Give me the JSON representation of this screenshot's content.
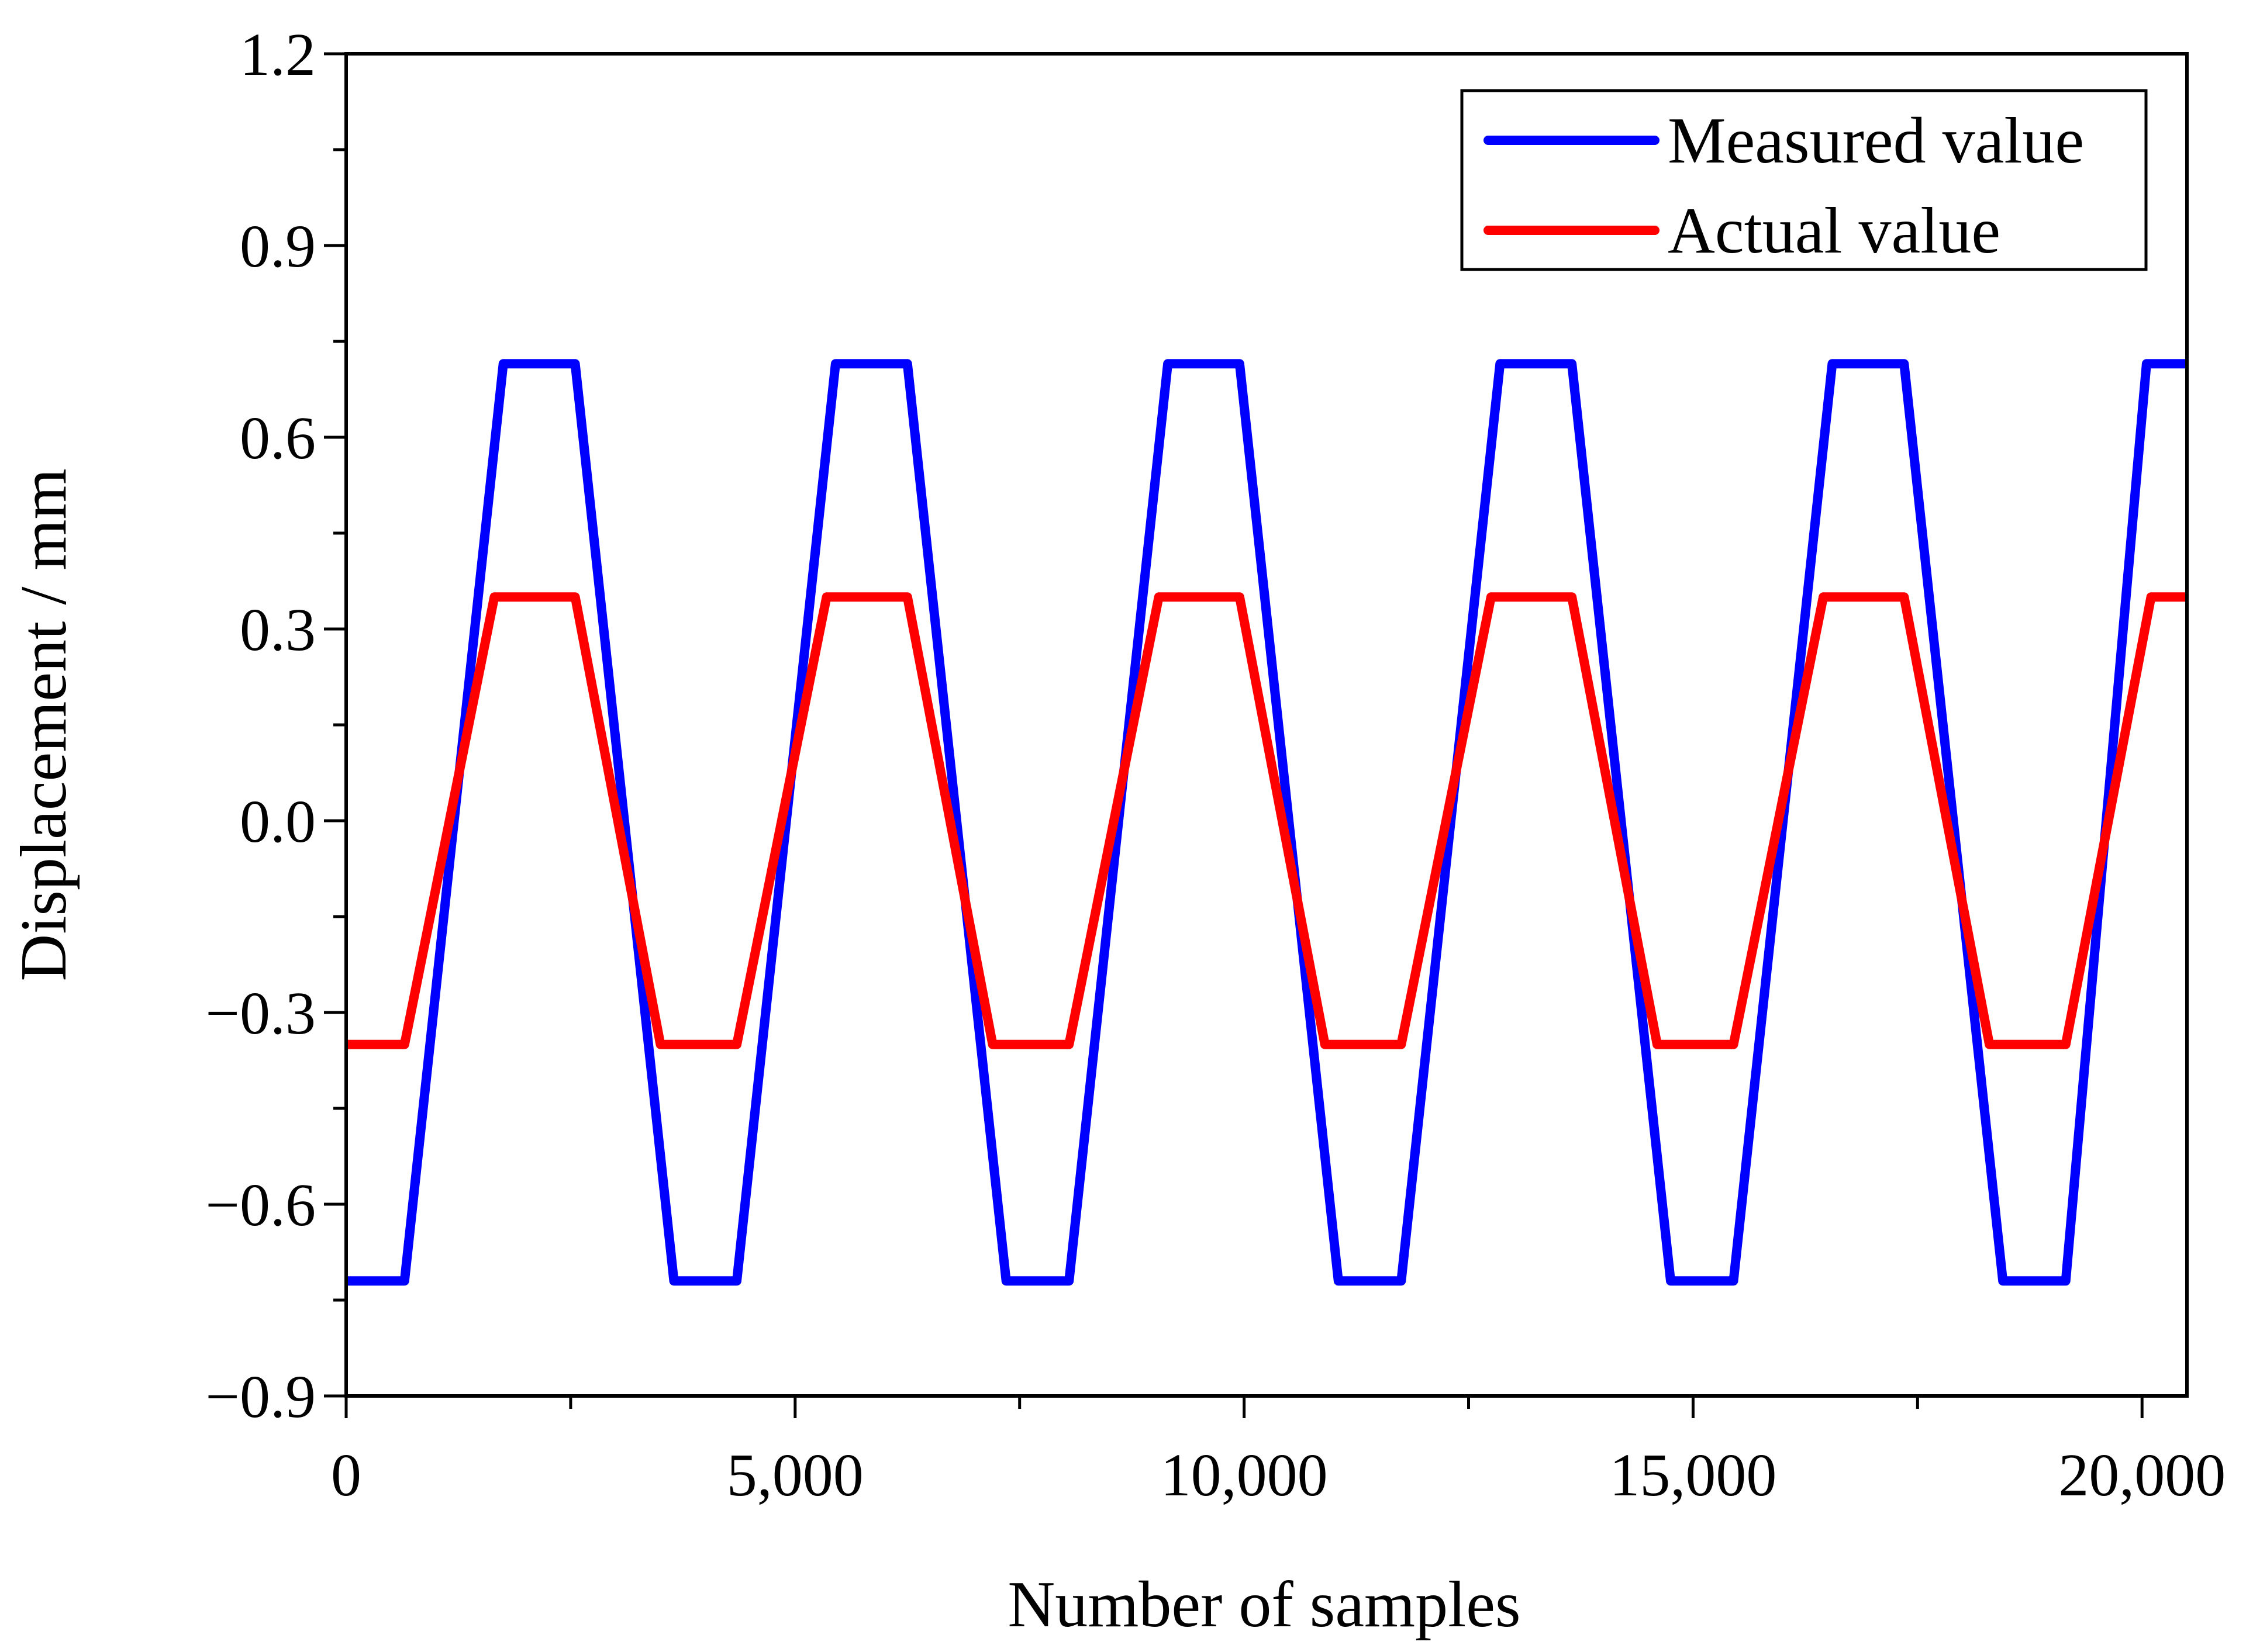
{
  "chart_data": {
    "type": "line",
    "title": "",
    "xlabel": "Number of samples",
    "ylabel": "Displacement / mm",
    "xlim": [
      0,
      20500
    ],
    "ylim": [
      -0.9,
      1.2
    ],
    "x_ticks": [
      0,
      5000,
      10000,
      15000,
      20000
    ],
    "x_tick_labels": [
      "0",
      "5,000",
      "10,000",
      "15,000",
      "20,000"
    ],
    "y_ticks": [
      -0.9,
      -0.6,
      -0.3,
      0.0,
      0.3,
      0.6,
      0.9,
      1.2
    ],
    "y_tick_labels": [
      "−0.9",
      "−0.6",
      "−0.3",
      "0.0",
      "0.3",
      "0.6",
      "0.9",
      "1.2"
    ],
    "legend_position": "top-right",
    "grid": false,
    "series": [
      {
        "name": "Measured value",
        "color": "#0000ff",
        "x": [
          0,
          650,
          1750,
          2550,
          3650,
          4350,
          5450,
          6250,
          7350,
          8050,
          9150,
          9950,
          11050,
          11750,
          12850,
          13650,
          14750,
          15450,
          16550,
          17350,
          18450,
          19150,
          20050,
          20500
        ],
        "y": [
          -0.72,
          -0.72,
          0.715,
          0.715,
          -0.72,
          -0.72,
          0.715,
          0.715,
          -0.72,
          -0.72,
          0.715,
          0.715,
          -0.72,
          -0.72,
          0.715,
          0.715,
          -0.72,
          -0.72,
          0.715,
          0.715,
          -0.72,
          -0.72,
          0.715,
          0.715
        ]
      },
      {
        "name": "Actual value",
        "color": "#ff0000",
        "x": [
          0,
          650,
          1650,
          2550,
          3500,
          4350,
          5350,
          6250,
          7200,
          8050,
          9050,
          9950,
          10900,
          11750,
          12750,
          13650,
          14600,
          15450,
          16450,
          17350,
          18300,
          19150,
          20100,
          20500
        ],
        "y": [
          -0.35,
          -0.35,
          0.35,
          0.35,
          -0.35,
          -0.35,
          0.35,
          0.35,
          -0.35,
          -0.35,
          0.35,
          0.35,
          -0.35,
          -0.35,
          0.35,
          0.35,
          -0.35,
          -0.35,
          0.35,
          0.35,
          -0.35,
          -0.35,
          0.35,
          0.35
        ]
      }
    ]
  }
}
